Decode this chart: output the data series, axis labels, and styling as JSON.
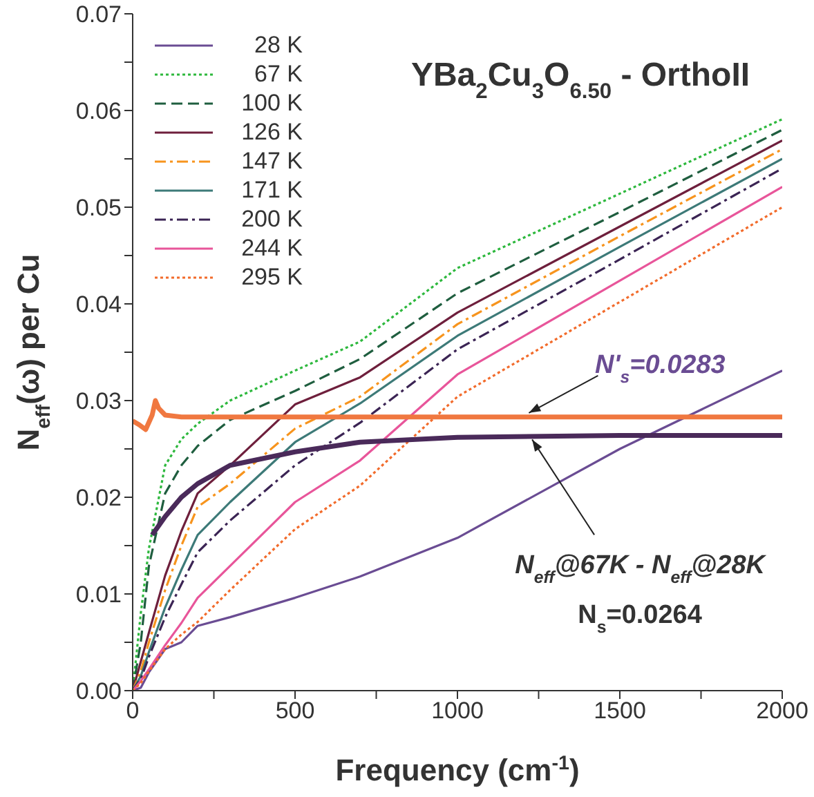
{
  "chart_data": {
    "type": "line",
    "title": "YBa$_{2}$Cu$_{3}$O$_{6.50}$ - OrthoII",
    "xlabel": "Frequency (cm$^{-1}$)",
    "ylabel": "N$_{eff}$(ω) per Cu",
    "x": [
      0,
      25,
      50,
      100,
      150,
      200,
      300,
      500,
      700,
      1000,
      1500,
      2000
    ],
    "series": [
      {
        "name": "28 K",
        "color": "#6a4c93",
        "line_style": "solid",
        "values": [
          0,
          0.0003,
          0.0019,
          0.0043,
          0.005,
          0.0067,
          0.0076,
          0.0096,
          0.0118,
          0.0158,
          0.025,
          0.0331
        ]
      },
      {
        "name": "67 K",
        "color": "#2db83d",
        "line_style": "dotted",
        "values": [
          0,
          0.008,
          0.0147,
          0.0233,
          0.026,
          0.0276,
          0.03,
          0.0331,
          0.0361,
          0.0437,
          0.0514,
          0.0591
        ]
      },
      {
        "name": "100 K",
        "color": "#1f5e3f",
        "line_style": "dashed",
        "values": [
          0,
          0.005,
          0.0129,
          0.0204,
          0.0233,
          0.0253,
          0.028,
          0.031,
          0.0343,
          0.0411,
          0.0495,
          0.058
        ]
      },
      {
        "name": "126 K",
        "color": "#6e1f3c",
        "line_style": "solid",
        "values": [
          0,
          0.003,
          0.006,
          0.0119,
          0.0165,
          0.0204,
          0.0233,
          0.0296,
          0.0324,
          0.0391,
          0.048,
          0.0569
        ]
      },
      {
        "name": "147 K",
        "color": "#f7941d",
        "line_style": "dashdot",
        "values": [
          0,
          0.002,
          0.005,
          0.0104,
          0.015,
          0.019,
          0.0214,
          0.0271,
          0.0304,
          0.0379,
          0.047,
          0.056
        ]
      },
      {
        "name": "171 K",
        "color": "#3d7a78",
        "line_style": "solid",
        "values": [
          0,
          0.0015,
          0.004,
          0.0086,
          0.0125,
          0.0161,
          0.0195,
          0.0257,
          0.0297,
          0.0367,
          0.0459,
          0.055
        ]
      },
      {
        "name": "200 K",
        "color": "#3b2454",
        "line_style": "dashdot",
        "values": [
          0,
          0.0012,
          0.0035,
          0.0076,
          0.011,
          0.0143,
          0.0176,
          0.0233,
          0.0277,
          0.0353,
          0.0446,
          0.054
        ]
      },
      {
        "name": "244 K",
        "color": "#e8559a",
        "line_style": "solid",
        "values": [
          0,
          0.001,
          0.0022,
          0.0047,
          0.007,
          0.0096,
          0.0129,
          0.0195,
          0.0238,
          0.0327,
          0.0424,
          0.0521
        ]
      },
      {
        "name": "295 K",
        "color": "#f26b2b",
        "line_style": "dotted",
        "values": [
          0,
          0.0008,
          0.002,
          0.0043,
          0.0058,
          0.0071,
          0.0104,
          0.0167,
          0.0212,
          0.0304,
          0.0402,
          0.05
        ]
      },
      {
        "color": "#f07840",
        "line_style": "solid",
        "x": [
          0,
          20,
          40,
          60,
          70,
          80,
          100,
          150,
          300,
          500,
          1000,
          1500,
          2000
        ],
        "values": [
          0.0279,
          0.0275,
          0.027,
          0.0285,
          0.03,
          0.0292,
          0.0285,
          0.0283,
          0.0283,
          0.0283,
          0.0283,
          0.0283,
          0.0283
        ]
      },
      {
        "color": "#4a2a5a",
        "line_style": "solid",
        "x": [
          60,
          100,
          150,
          200,
          300,
          500,
          700,
          1000,
          1500,
          2000
        ],
        "values": [
          0.0161,
          0.018,
          0.02,
          0.0214,
          0.0233,
          0.0247,
          0.0257,
          0.0262,
          0.0264,
          0.0264
        ]
      }
    ],
    "annotations": [
      {
        "text": "N'$_{s}$=0.0283",
        "x": 1220,
        "y": 0.0283
      },
      {
        "text": "N$_{eff}$@67K - N$_{eff}$@28K",
        "x": 1230,
        "y": 0.0264
      },
      "N$_{s}$=0.0264"
    ],
    "xlim": [
      0,
      2000
    ],
    "xticks": [
      0,
      {
        "value": 250,
        "label": null
      },
      500,
      {
        "value": 750,
        "label": null
      },
      1000,
      {
        "value": 1250,
        "label": null
      },
      1500,
      {
        "value": 1750,
        "label": null
      },
      2000
    ],
    "ylim": [
      0,
      0.07
    ],
    "yticks": [
      {
        "value": 0,
        "label": "0.00"
      },
      {
        "value": 0.005,
        "label": null
      },
      0.01,
      {
        "value": 0.015,
        "label": null
      },
      0.02,
      {
        "value": 0.025,
        "label": null
      },
      0.03,
      {
        "value": 0.035,
        "label": null
      },
      0.04,
      {
        "value": 0.045,
        "label": null
      },
      0.05,
      {
        "value": 0.055,
        "label": null
      },
      0.06,
      {
        "value": 0.065,
        "label": null
      },
      0.07
    ],
    "grid": false,
    "legend": "top left",
    "marker": "none"
  }
}
